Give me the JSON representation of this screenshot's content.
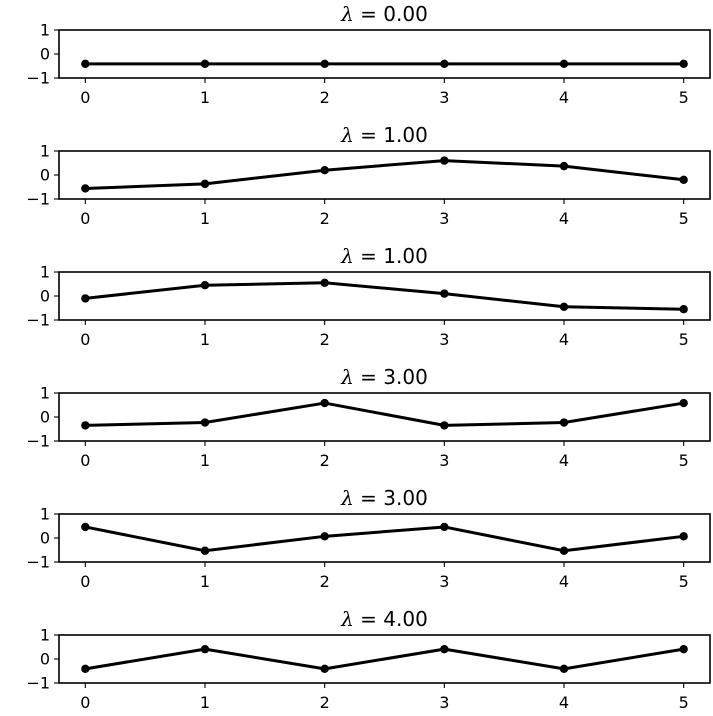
{
  "chart_data": [
    {
      "type": "line",
      "title": {
        "symbol": "λ",
        "rest": " = 0.00"
      },
      "x": [
        0,
        1,
        2,
        3,
        4,
        5
      ],
      "series": [
        {
          "values": [
            -0.41,
            -0.41,
            -0.41,
            -0.41,
            -0.41,
            -0.41
          ]
        }
      ],
      "xticks": [
        "0",
        "1",
        "2",
        "3",
        "4",
        "5"
      ],
      "yticks": [
        {
          "v": 1,
          "label": "1"
        },
        {
          "v": 0,
          "label": "0"
        },
        {
          "v": -1,
          "label": "−1"
        }
      ],
      "xlim": [
        -0.22,
        5.22
      ],
      "ylim": [
        -1,
        1
      ],
      "grid": false,
      "color": "#000000"
    },
    {
      "type": "line",
      "title": {
        "symbol": "λ",
        "rest": " = 1.00"
      },
      "x": [
        0,
        1,
        2,
        3,
        4,
        5
      ],
      "series": [
        {
          "values": [
            -0.56,
            -0.37,
            0.2,
            0.6,
            0.37,
            -0.2
          ]
        }
      ],
      "xticks": [
        "0",
        "1",
        "2",
        "3",
        "4",
        "5"
      ],
      "yticks": [
        {
          "v": 1,
          "label": "1"
        },
        {
          "v": 0,
          "label": "0"
        },
        {
          "v": -1,
          "label": "−1"
        }
      ],
      "xlim": [
        -0.22,
        5.22
      ],
      "ylim": [
        -1,
        1
      ],
      "grid": false,
      "color": "#000000"
    },
    {
      "type": "line",
      "title": {
        "symbol": "λ",
        "rest": " = 1.00"
      },
      "x": [
        0,
        1,
        2,
        3,
        4,
        5
      ],
      "series": [
        {
          "values": [
            -0.1,
            0.45,
            0.55,
            0.1,
            -0.45,
            -0.55
          ]
        }
      ],
      "xticks": [
        "0",
        "1",
        "2",
        "3",
        "4",
        "5"
      ],
      "yticks": [
        {
          "v": 1,
          "label": "1"
        },
        {
          "v": 0,
          "label": "0"
        },
        {
          "v": -1,
          "label": "−1"
        }
      ],
      "xlim": [
        -0.22,
        5.22
      ],
      "ylim": [
        -1,
        1
      ],
      "grid": false,
      "color": "#000000"
    },
    {
      "type": "line",
      "title": {
        "symbol": "λ",
        "rest": " = 3.00"
      },
      "x": [
        0,
        1,
        2,
        3,
        4,
        5
      ],
      "series": [
        {
          "values": [
            -0.35,
            -0.23,
            0.58,
            -0.35,
            -0.23,
            0.58
          ]
        }
      ],
      "xticks": [
        "0",
        "1",
        "2",
        "3",
        "4",
        "5"
      ],
      "yticks": [
        {
          "v": 1,
          "label": "1"
        },
        {
          "v": 0,
          "label": "0"
        },
        {
          "v": -1,
          "label": "−1"
        }
      ],
      "xlim": [
        -0.22,
        5.22
      ],
      "ylim": [
        -1,
        1
      ],
      "grid": false,
      "color": "#000000"
    },
    {
      "type": "line",
      "title": {
        "symbol": "λ",
        "rest": " = 3.00"
      },
      "x": [
        0,
        1,
        2,
        3,
        4,
        5
      ],
      "series": [
        {
          "values": [
            0.46,
            -0.53,
            0.07,
            0.46,
            -0.53,
            0.07
          ]
        }
      ],
      "xticks": [
        "0",
        "1",
        "2",
        "3",
        "4",
        "5"
      ],
      "yticks": [
        {
          "v": 1,
          "label": "1"
        },
        {
          "v": 0,
          "label": "0"
        },
        {
          "v": -1,
          "label": "−1"
        }
      ],
      "xlim": [
        -0.22,
        5.22
      ],
      "ylim": [
        -1,
        1
      ],
      "grid": false,
      "color": "#000000"
    },
    {
      "type": "line",
      "title": {
        "symbol": "λ",
        "rest": " = 4.00"
      },
      "x": [
        0,
        1,
        2,
        3,
        4,
        5
      ],
      "series": [
        {
          "values": [
            -0.41,
            0.41,
            -0.41,
            0.41,
            -0.41,
            0.41
          ]
        }
      ],
      "xticks": [
        "0",
        "1",
        "2",
        "3",
        "4",
        "5"
      ],
      "yticks": [
        {
          "v": 1,
          "label": "1"
        },
        {
          "v": 0,
          "label": "0"
        },
        {
          "v": -1,
          "label": "−1"
        }
      ],
      "xlim": [
        -0.22,
        5.22
      ],
      "ylim": [
        -1,
        1
      ],
      "grid": false,
      "color": "#000000"
    }
  ]
}
